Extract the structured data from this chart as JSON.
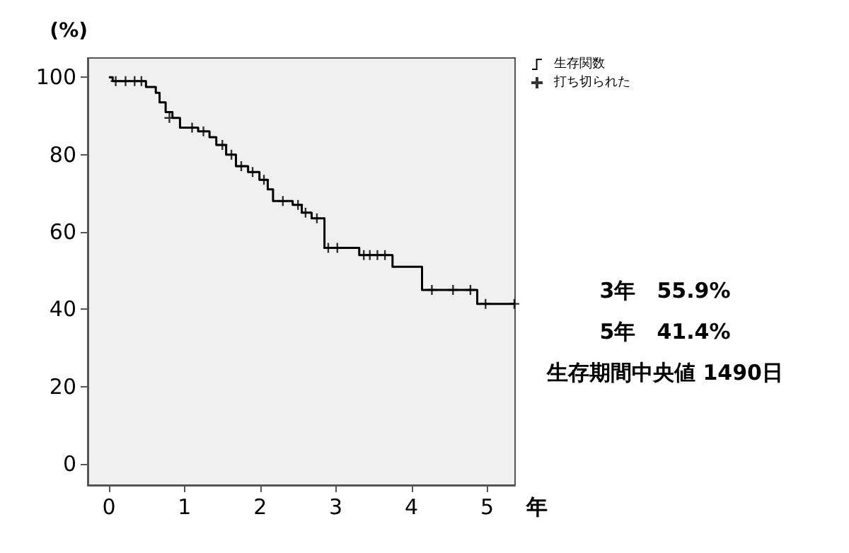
{
  "chart_data": {
    "type": "step",
    "xlabel": "年",
    "ylabel": "(%)",
    "xlim": [
      -0.28,
      5.37
    ],
    "ylim": [
      -5.5,
      105
    ],
    "xticks": [
      0,
      1,
      2,
      3,
      4,
      5
    ],
    "yticks": [
      0,
      20,
      40,
      60,
      80,
      100
    ],
    "grid": false,
    "legend": "top right",
    "series": [
      {
        "name": "生存関数",
        "type": "step",
        "color": "#000000",
        "marker": "none",
        "x": [
          0,
          0.05,
          0.49,
          0.62,
          0.67,
          0.75,
          0.84,
          0.94,
          1.18,
          1.33,
          1.42,
          1.55,
          1.68,
          1.84,
          1.99,
          2.1,
          2.17,
          2.43,
          2.55,
          2.68,
          2.85,
          3.31,
          3.75,
          4.14,
          4.87,
          5.36
        ],
        "values": [
          100,
          99,
          97.5,
          96,
          93.5,
          91,
          89.5,
          87,
          86,
          84.5,
          82.5,
          80,
          77,
          75.5,
          73.5,
          71,
          68,
          67,
          65,
          63.5,
          55.9,
          54,
          51,
          45,
          41.4,
          41.4
        ]
      },
      {
        "name": "打ち切られた",
        "type": "scatter",
        "color": "#000000",
        "marker": "cross",
        "x": [
          0.09,
          0.22,
          0.34,
          0.43,
          0.8,
          1.1,
          1.25,
          1.5,
          1.62,
          1.75,
          1.9,
          2.05,
          2.3,
          2.5,
          2.6,
          2.75,
          2.9,
          3.02,
          3.37,
          3.45,
          3.55,
          3.65,
          4.27,
          4.55,
          4.78,
          4.98,
          5.36
        ],
        "values": [
          99,
          99,
          99,
          99,
          89.5,
          87,
          86,
          82.5,
          80,
          77,
          75.5,
          73.5,
          68,
          67,
          65,
          63.5,
          55.9,
          55.9,
          54,
          54,
          54,
          54,
          45,
          45,
          45,
          41.4,
          41.4
        ]
      }
    ],
    "annotations": [
      "3年　55.9%",
      "5年　41.4%",
      "生存期間中央値 1490日"
    ]
  }
}
